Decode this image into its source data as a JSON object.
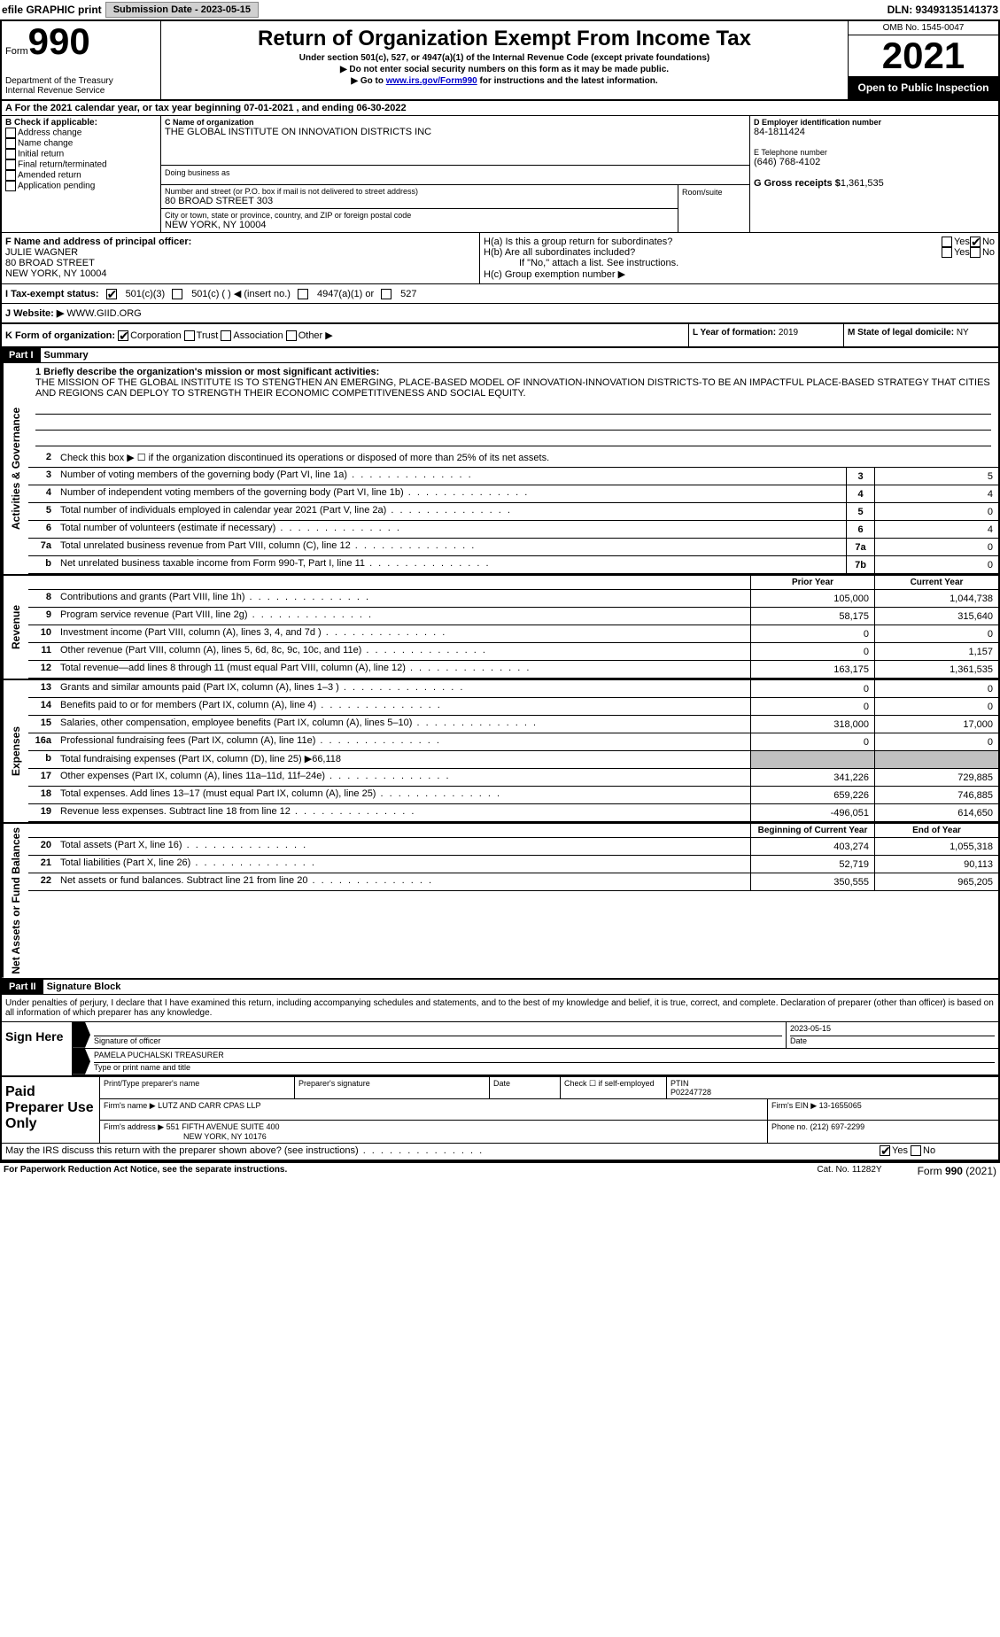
{
  "top": {
    "efile": "efile GRAPHIC print",
    "submission_label": "Submission Date - 2023-05-15",
    "dln": "DLN: 93493135141373"
  },
  "header": {
    "form_label": "Form",
    "form_num": "990",
    "dept": "Department of the Treasury\nInternal Revenue Service",
    "title": "Return of Organization Exempt From Income Tax",
    "sub1": "Under section 501(c), 527, or 4947(a)(1) of the Internal Revenue Code (except private foundations)",
    "sub2": "▶ Do not enter social security numbers on this form as it may be made public.",
    "sub3_pre": "▶ Go to ",
    "sub3_link": "www.irs.gov/Form990",
    "sub3_post": " for instructions and the latest information.",
    "omb": "OMB No. 1545-0047",
    "year": "2021",
    "inspection": "Open to Public Inspection"
  },
  "a": {
    "text": "A For the 2021 calendar year, or tax year beginning 07-01-2021   , and ending 06-30-2022"
  },
  "b": {
    "title": "B Check if applicable:",
    "items": [
      "Address change",
      "Name change",
      "Initial return",
      "Final return/terminated",
      "Amended return",
      "Application pending"
    ]
  },
  "c": {
    "name_label": "C Name of organization",
    "name": "THE GLOBAL INSTITUTE ON INNOVATION DISTRICTS INC",
    "dba_label": "Doing business as",
    "addr_label": "Number and street (or P.O. box if mail is not delivered to street address)",
    "addr": "80 BROAD STREET 303",
    "room_label": "Room/suite",
    "city_label": "City or town, state or province, country, and ZIP or foreign postal code",
    "city": "NEW YORK, NY  10004"
  },
  "d": {
    "ein_label": "D Employer identification number",
    "ein": "84-1811424",
    "phone_label": "E Telephone number",
    "phone": "(646) 768-4102",
    "gross_label": "G Gross receipts $",
    "gross": "1,361,535"
  },
  "f": {
    "label": "F  Name and address of principal officer:",
    "name": "JULIE WAGNER",
    "addr1": "80 BROAD STREET",
    "addr2": "NEW YORK, NY  10004"
  },
  "h": {
    "a_label": "H(a)  Is this a group return for subordinates?",
    "b_label": "H(b)  Are all subordinates included?",
    "b_note": "If \"No,\" attach a list. See instructions.",
    "c_label": "H(c)  Group exemption number ▶"
  },
  "i": {
    "label": "I   Tax-exempt status:"
  },
  "j": {
    "label": "J   Website: ▶",
    "val": "WWW.GIID.ORG"
  },
  "k": {
    "label": "K Form of organization:"
  },
  "l": {
    "label": "L Year of formation:",
    "val": "2019"
  },
  "m": {
    "label": "M State of legal domicile:",
    "val": "NY"
  },
  "part1": {
    "hdr": "Part I",
    "title": "Summary",
    "mission_label": "1 Briefly describe the organization's mission or most significant activities:",
    "mission": "THE MISSION OF THE GLOBAL INSTITUTE IS TO STENGTHEN AN EMERGING, PLACE-BASED MODEL OF INNOVATION-INNOVATION DISTRICTS-TO BE AN IMPACTFUL PLACE-BASED STRATEGY THAT CITIES AND REGIONS CAN DEPLOY TO STRENGTH THEIR ECONOMIC COMPETITIVENESS AND SOCIAL EQUITY.",
    "line2": "Check this box ▶ ☐ if the organization discontinued its operations or disposed of more than 25% of its net assets.",
    "lines_gov": [
      {
        "n": "3",
        "t": "Number of voting members of the governing body (Part VI, line 1a)",
        "b": "3",
        "v": "5"
      },
      {
        "n": "4",
        "t": "Number of independent voting members of the governing body (Part VI, line 1b)",
        "b": "4",
        "v": "4"
      },
      {
        "n": "5",
        "t": "Total number of individuals employed in calendar year 2021 (Part V, line 2a)",
        "b": "5",
        "v": "0"
      },
      {
        "n": "6",
        "t": "Total number of volunteers (estimate if necessary)",
        "b": "6",
        "v": "4"
      },
      {
        "n": "7a",
        "t": "Total unrelated business revenue from Part VIII, column (C), line 12",
        "b": "7a",
        "v": "0"
      },
      {
        "n": "b",
        "t": "Net unrelated business taxable income from Form 990-T, Part I, line 11",
        "b": "7b",
        "v": "0"
      }
    ],
    "prior_hdr": "Prior Year",
    "current_hdr": "Current Year",
    "lines_rev": [
      {
        "n": "8",
        "t": "Contributions and grants (Part VIII, line 1h)",
        "p": "105,000",
        "c": "1,044,738"
      },
      {
        "n": "9",
        "t": "Program service revenue (Part VIII, line 2g)",
        "p": "58,175",
        "c": "315,640"
      },
      {
        "n": "10",
        "t": "Investment income (Part VIII, column (A), lines 3, 4, and 7d )",
        "p": "0",
        "c": "0"
      },
      {
        "n": "11",
        "t": "Other revenue (Part VIII, column (A), lines 5, 6d, 8c, 9c, 10c, and 11e)",
        "p": "0",
        "c": "1,157"
      },
      {
        "n": "12",
        "t": "Total revenue—add lines 8 through 11 (must equal Part VIII, column (A), line 12)",
        "p": "163,175",
        "c": "1,361,535"
      }
    ],
    "lines_exp": [
      {
        "n": "13",
        "t": "Grants and similar amounts paid (Part IX, column (A), lines 1–3 )",
        "p": "0",
        "c": "0"
      },
      {
        "n": "14",
        "t": "Benefits paid to or for members (Part IX, column (A), line 4)",
        "p": "0",
        "c": "0"
      },
      {
        "n": "15",
        "t": "Salaries, other compensation, employee benefits (Part IX, column (A), lines 5–10)",
        "p": "318,000",
        "c": "17,000"
      },
      {
        "n": "16a",
        "t": "Professional fundraising fees (Part IX, column (A), line 11e)",
        "p": "0",
        "c": "0"
      },
      {
        "n": "b",
        "t": "Total fundraising expenses (Part IX, column (D), line 25) ▶66,118",
        "p": "",
        "c": "",
        "shade": true
      },
      {
        "n": "17",
        "t": "Other expenses (Part IX, column (A), lines 11a–11d, 11f–24e)",
        "p": "341,226",
        "c": "729,885"
      },
      {
        "n": "18",
        "t": "Total expenses. Add lines 13–17 (must equal Part IX, column (A), line 25)",
        "p": "659,226",
        "c": "746,885"
      },
      {
        "n": "19",
        "t": "Revenue less expenses. Subtract line 18 from line 12",
        "p": "-496,051",
        "c": "614,650"
      }
    ],
    "beg_hdr": "Beginning of Current Year",
    "end_hdr": "End of Year",
    "lines_net": [
      {
        "n": "20",
        "t": "Total assets (Part X, line 16)",
        "p": "403,274",
        "c": "1,055,318"
      },
      {
        "n": "21",
        "t": "Total liabilities (Part X, line 26)",
        "p": "52,719",
        "c": "90,113"
      },
      {
        "n": "22",
        "t": "Net assets or fund balances. Subtract line 21 from line 20",
        "p": "350,555",
        "c": "965,205"
      }
    ]
  },
  "side": {
    "gov": "Activities & Governance",
    "rev": "Revenue",
    "exp": "Expenses",
    "net": "Net Assets or Fund Balances"
  },
  "part2": {
    "hdr": "Part II",
    "title": "Signature Block",
    "decl": "Under penalties of perjury, I declare that I have examined this return, including accompanying schedules and statements, and to the best of my knowledge and belief, it is true, correct, and complete. Declaration of preparer (other than officer) is based on all information of which preparer has any knowledge.",
    "sign_here": "Sign Here",
    "sig_officer": "Signature of officer",
    "sig_date": "Date",
    "sig_date_val": "2023-05-15",
    "sig_name": "PAMELA PUCHALSKI TREASURER",
    "sig_name_label": "Type or print name and title",
    "paid": "Paid Preparer Use Only",
    "prep_name_label": "Print/Type preparer's name",
    "prep_sig_label": "Preparer's signature",
    "prep_date_label": "Date",
    "prep_check": "Check ☐ if self-employed",
    "ptin_label": "PTIN",
    "ptin": "P02247728",
    "firm_name_label": "Firm's name    ▶",
    "firm_name": "LUTZ AND CARR CPAS LLP",
    "firm_ein_label": "Firm's EIN ▶",
    "firm_ein": "13-1655065",
    "firm_addr_label": "Firm's address ▶",
    "firm_addr1": "551 FIFTH AVENUE SUITE 400",
    "firm_addr2": "NEW YORK, NY  10176",
    "firm_phone_label": "Phone no.",
    "firm_phone": "(212) 697-2299",
    "discuss": "May the IRS discuss this return with the preparer shown above? (see instructions)"
  },
  "footer": {
    "left": "For Paperwork Reduction Act Notice, see the separate instructions.",
    "mid": "Cat. No. 11282Y",
    "right": "Form 990 (2021)"
  },
  "tax_opts": [
    "501(c)(3)",
    "501(c) (  ) ◀ (insert no.)",
    "4947(a)(1) or",
    "527"
  ],
  "k_opts": [
    "Corporation",
    "Trust",
    "Association",
    "Other ▶"
  ],
  "yn": {
    "yes": "Yes",
    "no": "No"
  }
}
